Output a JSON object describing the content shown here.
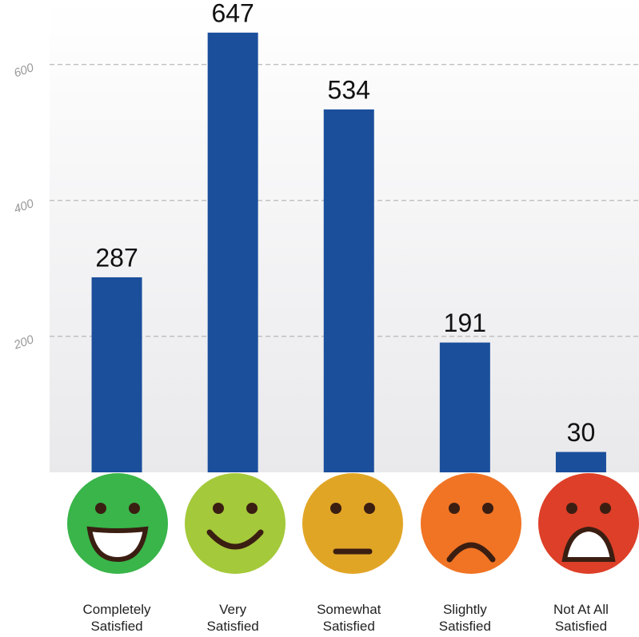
{
  "chart_data": {
    "type": "bar",
    "categories": [
      "Completely Satisfied",
      "Very Satisfied",
      "Somewhat Satisfied",
      "Slightly Satisfied",
      "Not At All Satisfied"
    ],
    "values": [
      287,
      647,
      534,
      191,
      30
    ],
    "color": "#1b4f9c",
    "ylim": [
      0,
      695
    ],
    "yticks": [
      200,
      400,
      600
    ],
    "grid": true
  }
}
